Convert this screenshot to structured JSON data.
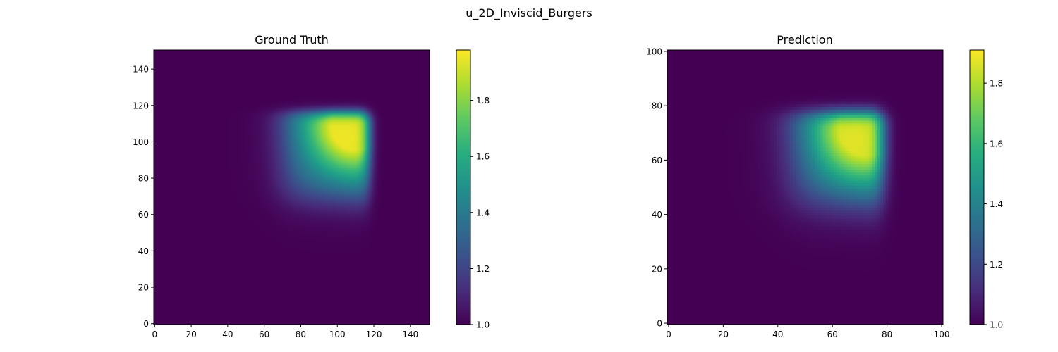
{
  "chart_data": {
    "title": "u_2D_Inviscid_Burgers",
    "colormap": "viridis",
    "panels": [
      {
        "type": "heatmap",
        "title": "Ground Truth",
        "grid_n": 151,
        "xlim": [
          0,
          150
        ],
        "ylim": [
          0,
          150
        ],
        "xticks": [
          0,
          20,
          40,
          60,
          80,
          100,
          120,
          140
        ],
        "yticks": [
          0,
          20,
          40,
          60,
          80,
          100,
          120,
          140
        ],
        "field": {
          "background": 1.0,
          "peak": 1.98,
          "peak_center": [
            108,
            107
          ],
          "peak_radius": 13,
          "square_x": [
            70,
            119
          ],
          "square_y": [
            68,
            118
          ],
          "edge_softness_low": 5.5,
          "edge_softness_high": 2.2,
          "corner_round": 9
        },
        "colorbar": {
          "vmin": 1.0,
          "vmax": 1.98,
          "ticks": [
            1.0,
            1.2,
            1.4,
            1.6,
            1.8
          ]
        }
      },
      {
        "type": "heatmap",
        "title": "Prediction",
        "grid_n": 101,
        "xlim": [
          0,
          100
        ],
        "ylim": [
          0,
          100
        ],
        "xticks": [
          0,
          20,
          40,
          60,
          80,
          100
        ],
        "yticks": [
          0,
          20,
          40,
          60,
          80,
          100
        ],
        "field": {
          "background": 1.0,
          "peak": 1.91,
          "peak_center": [
            71,
            70
          ],
          "peak_radius": 10,
          "square_x": [
            45,
            80
          ],
          "square_y": [
            43,
            79
          ],
          "edge_softness_low": 4.5,
          "edge_softness_high": 2.0,
          "corner_round": 7
        },
        "colorbar": {
          "vmin": 1.0,
          "vmax": 1.91,
          "ticks": [
            1.0,
            1.2,
            1.4,
            1.6,
            1.8
          ]
        }
      }
    ]
  }
}
